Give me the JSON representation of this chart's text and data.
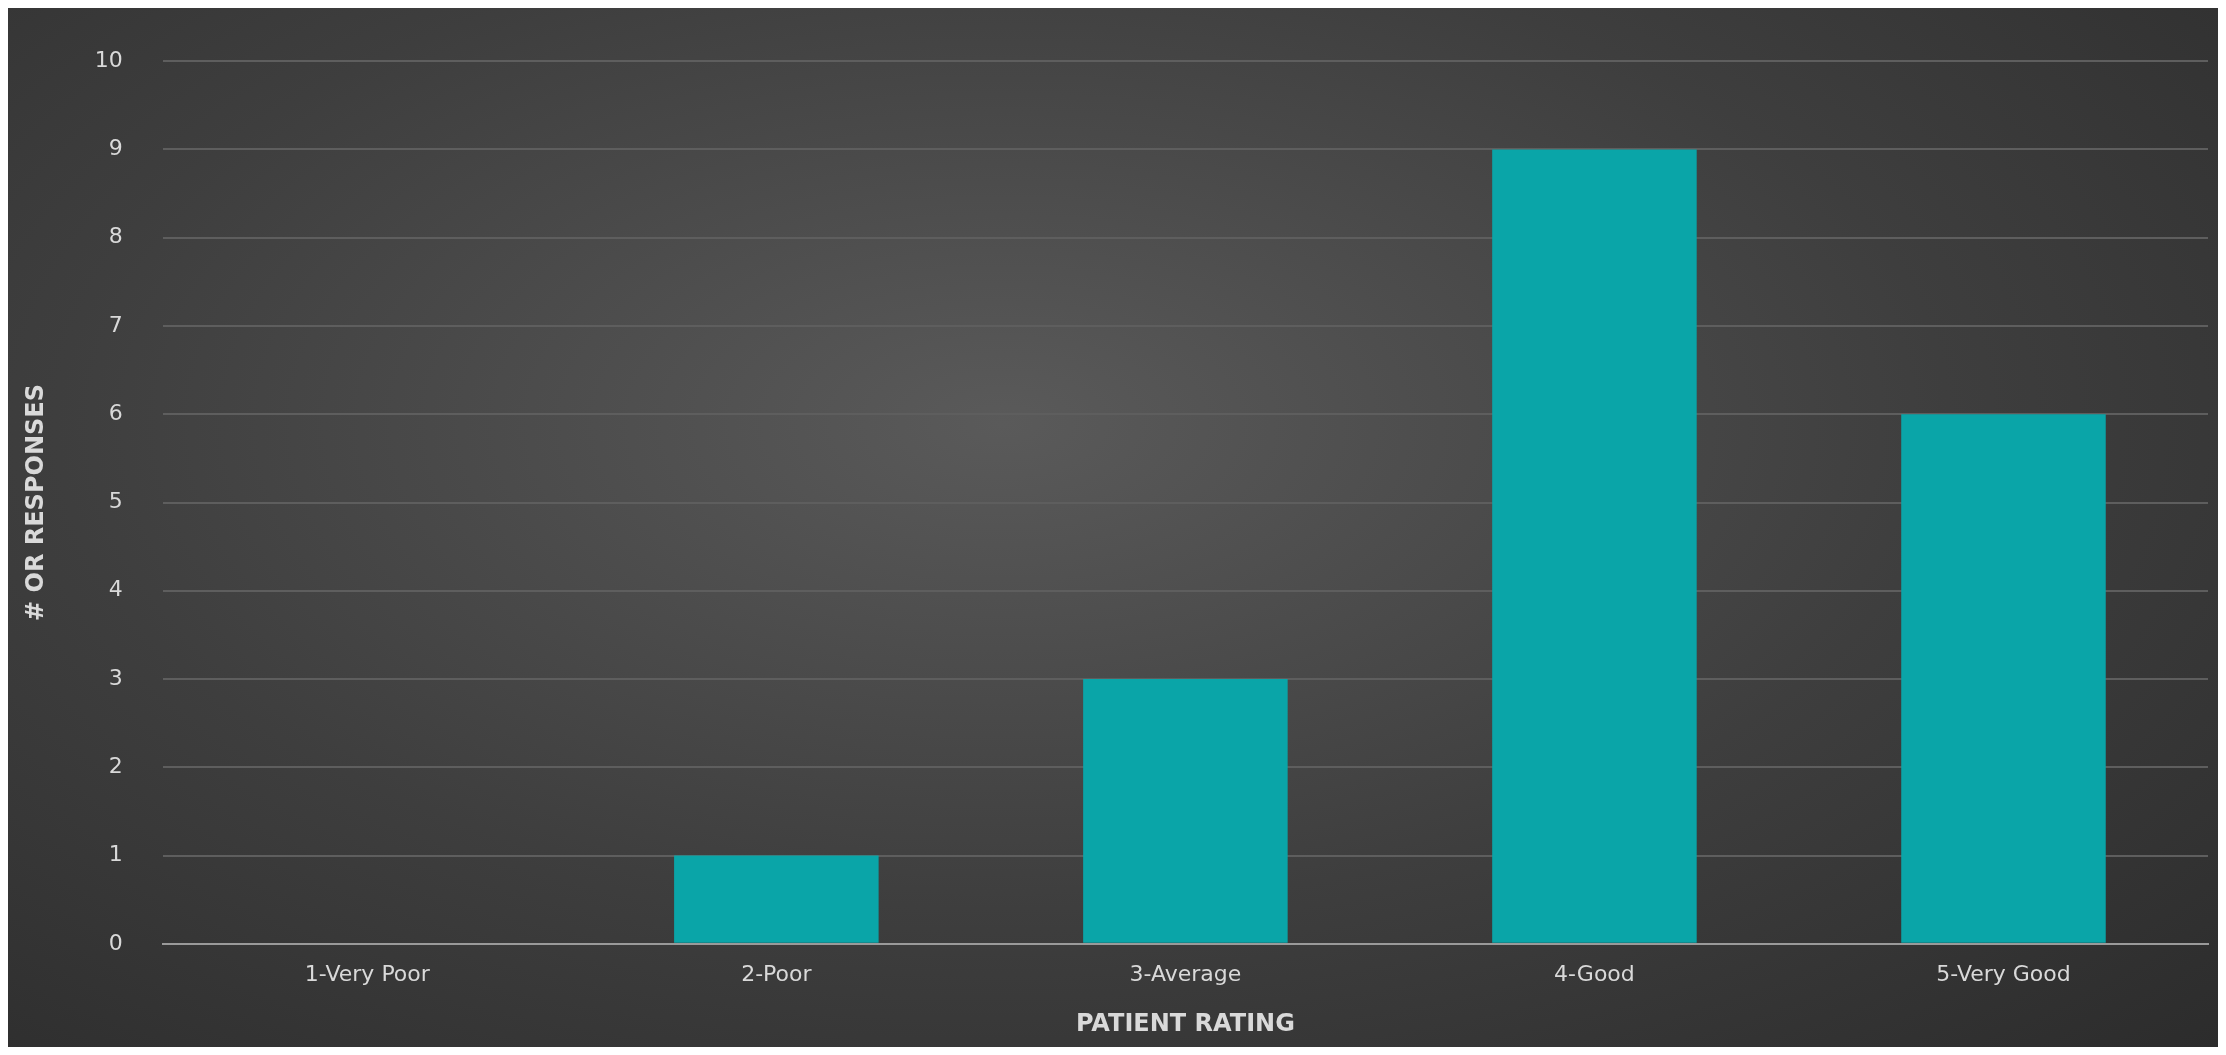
{
  "chart_data": {
    "type": "bar",
    "xlabel": "PATIENT RATING",
    "ylabel": "# OR RESPONSES",
    "categories": [
      "1-Very Poor",
      "2-Poor",
      "3-Average",
      "4-Good",
      "5-Very Good"
    ],
    "values": [
      0,
      1,
      3,
      9,
      6
    ],
    "color": "#0aa5a8",
    "ylim": [
      0,
      10
    ],
    "yticks": [
      0,
      1,
      2,
      3,
      4,
      5,
      6,
      7,
      8,
      9,
      10
    ],
    "grid": "y"
  }
}
